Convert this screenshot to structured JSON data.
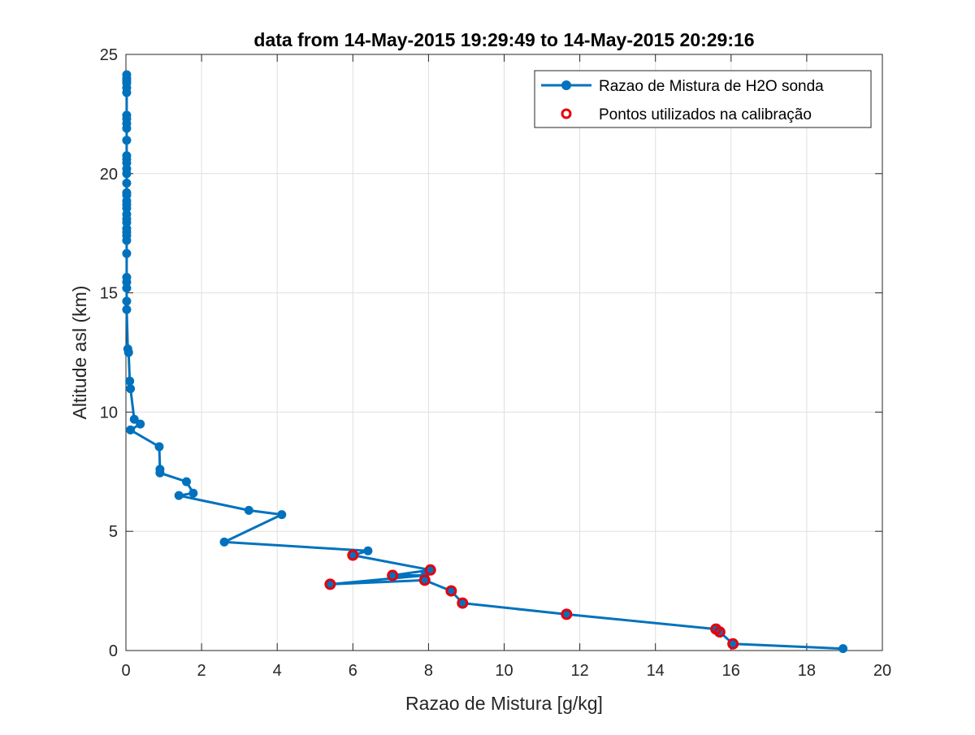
{
  "chart_data": {
    "type": "line",
    "title": "data from 14-May-2015 19:29:49 to 14-May-2015 20:29:16",
    "xlabel": "Razao de Mistura [g/kg]",
    "ylabel": "Altitude asl (km)",
    "xlim": [
      0,
      20
    ],
    "ylim": [
      0,
      25
    ],
    "xticks": [
      0,
      2,
      4,
      6,
      8,
      10,
      12,
      14,
      16,
      18,
      20
    ],
    "yticks": [
      0,
      5,
      10,
      15,
      20,
      25
    ],
    "grid": true,
    "legend_position": "top-right",
    "series": [
      {
        "name": "Razao de Mistura de H2O sonda",
        "color": "#0072BD",
        "style": "line-with-filled-circle-markers",
        "x": [
          18.96,
          16.05,
          15.7,
          15.6,
          11.65,
          8.9,
          8.6,
          7.9,
          5.4,
          7.9,
          7.05,
          8.05,
          6.0,
          6.4,
          2.6,
          4.12,
          3.25,
          1.4,
          1.78,
          1.6,
          0.9,
          0.9,
          0.88,
          0.12,
          0.38,
          0.22,
          0.12,
          0.1,
          0.07,
          0.05,
          0.02,
          0.02,
          0.02,
          0.02,
          0.02,
          0.02,
          0.02,
          0.02,
          0.02,
          0.02,
          0.02,
          0.02,
          0.02,
          0.02,
          0.02,
          0.02,
          0.02,
          0.02,
          0.02,
          0.02,
          0.02,
          0.02,
          0.02,
          0.02,
          0.02,
          0.02,
          0.02,
          0.02,
          0.02,
          0.02,
          0.02,
          0.02,
          0.02,
          0.02,
          0.02
        ],
        "y": [
          0.08,
          0.28,
          0.78,
          0.9,
          1.52,
          1.99,
          2.5,
          2.95,
          2.78,
          3.15,
          3.15,
          3.38,
          4.0,
          4.18,
          4.55,
          5.7,
          5.88,
          6.5,
          6.6,
          7.08,
          7.45,
          7.6,
          8.55,
          9.25,
          9.5,
          9.7,
          10.98,
          11.3,
          12.5,
          12.65,
          14.3,
          14.65,
          15.2,
          15.45,
          15.65,
          16.65,
          17.2,
          17.4,
          17.55,
          17.7,
          17.95,
          18.1,
          18.3,
          18.55,
          18.7,
          18.85,
          19.1,
          19.2,
          19.6,
          20.0,
          20.2,
          20.45,
          20.6,
          20.75,
          21.4,
          21.9,
          22.1,
          22.3,
          22.45,
          23.4,
          23.6,
          23.8,
          23.9,
          24.0,
          24.15
        ]
      },
      {
        "name": "Pontos utilizados na calibração",
        "color": "#E8000B",
        "style": "open-circle-markers",
        "x": [
          16.05,
          15.7,
          15.6,
          11.65,
          8.9,
          8.6,
          7.9,
          5.4,
          7.05,
          8.05,
          6.0
        ],
        "y": [
          0.28,
          0.78,
          0.9,
          1.52,
          1.99,
          2.5,
          2.95,
          2.78,
          3.15,
          3.38,
          4.0
        ]
      }
    ]
  }
}
